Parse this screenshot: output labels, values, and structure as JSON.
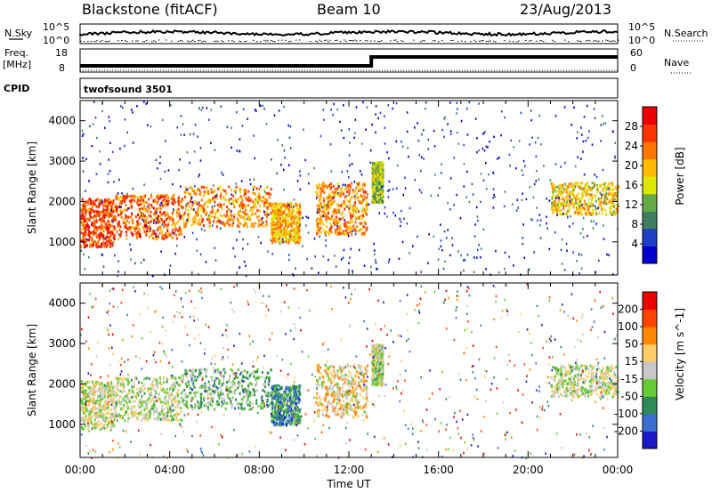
{
  "header": {
    "station": "Blackstone (fitACF)",
    "beam": "Beam 10",
    "date": "23/Aug/2013"
  },
  "summary": {
    "nsky_label": "N.Sky",
    "nsearch_label": "N.Search",
    "freq_label": "Freq.",
    "freq_unit": "[MHz]",
    "nave_label": "Nave",
    "cpid_label": "CPID",
    "cpid_value": "twofsound 3501",
    "noise_ticks_left": [
      "10^5",
      "10^0"
    ],
    "noise_ticks_right": [
      "10^5",
      "10^0"
    ],
    "freq_ticks": [
      "18",
      "8"
    ],
    "nave_ticks": [
      "60",
      "0"
    ],
    "freq_step_time": 13.0,
    "freq_before": 8,
    "freq_after": 18
  },
  "colors": {
    "power_scale": [
      "#0000cc",
      "#1f3fc8",
      "#3f7f5f",
      "#66aa44",
      "#dde800",
      "#ffbb00",
      "#ff7700",
      "#ff3300",
      "#ee0000"
    ],
    "velocity_scale": [
      "#1a1ac8",
      "#3a6fd0",
      "#2e8b57",
      "#66cc33",
      "#c8c8c8",
      "#ffcc66",
      "#ff8800",
      "#ff4400",
      "#ee0000"
    ]
  },
  "chart_data": [
    {
      "type": "heatmap",
      "title": "",
      "parameter": "Power",
      "xlabel": "",
      "ylabel": "Slant Range [km]",
      "xlim": [
        0,
        24
      ],
      "ylim": [
        180,
        4500
      ],
      "yticks": [
        1000,
        2000,
        3000,
        4000
      ],
      "colorbar": {
        "label": "Power [dB]",
        "ticks": [
          "28",
          "24",
          "20",
          "16",
          "12",
          "8",
          "4"
        ],
        "range": [
          0,
          32
        ]
      },
      "echo_bands": [
        {
          "t0": 0.0,
          "t1": 1.5,
          "r0": 900,
          "r1": 2100,
          "value": 26
        },
        {
          "t0": 1.5,
          "t1": 4.5,
          "r0": 1100,
          "r1": 2200,
          "value": 24
        },
        {
          "t0": 4.5,
          "t1": 8.5,
          "r0": 1400,
          "r1": 2400,
          "value": 22
        },
        {
          "t0": 8.5,
          "t1": 9.8,
          "r0": 1000,
          "r1": 2000,
          "value": 20
        },
        {
          "t0": 10.5,
          "t1": 12.8,
          "r0": 1200,
          "r1": 2500,
          "value": 22
        },
        {
          "t0": 13.0,
          "t1": 13.5,
          "r0": 2000,
          "r1": 3000,
          "value": 14
        },
        {
          "t0": 21.0,
          "t1": 24.0,
          "r0": 1700,
          "r1": 2500,
          "value": 18
        }
      ]
    },
    {
      "type": "heatmap",
      "title": "",
      "parameter": "Velocity",
      "xlabel": "Time UT",
      "ylabel": "Slant Range [km]",
      "xlim": [
        0,
        24
      ],
      "ylim": [
        180,
        4500
      ],
      "xticks": [
        "00:00",
        "04:00",
        "08:00",
        "12:00",
        "16:00",
        "20:00",
        "00:00"
      ],
      "yticks": [
        1000,
        2000,
        3000,
        4000
      ],
      "colorbar": {
        "label": "Velocity [m s^-1]",
        "ticks": [
          "200",
          "100",
          "50",
          "15",
          "-15",
          "-50",
          "-100",
          "-200"
        ],
        "range": [
          -250,
          250
        ]
      },
      "echo_bands": [
        {
          "t0": 0.0,
          "t1": 1.5,
          "r0": 900,
          "r1": 2100,
          "value": 0
        },
        {
          "t0": 1.5,
          "t1": 4.5,
          "r0": 1100,
          "r1": 2200,
          "value": -10
        },
        {
          "t0": 4.5,
          "t1": 8.5,
          "r0": 1400,
          "r1": 2400,
          "value": -60
        },
        {
          "t0": 8.5,
          "t1": 9.8,
          "r0": 1000,
          "r1": 2000,
          "value": -120
        },
        {
          "t0": 10.5,
          "t1": 12.8,
          "r0": 1200,
          "r1": 2500,
          "value": 40
        },
        {
          "t0": 13.0,
          "t1": 13.5,
          "r0": 2000,
          "r1": 3000,
          "value": -20
        },
        {
          "t0": 21.0,
          "t1": 24.0,
          "r0": 1700,
          "r1": 2500,
          "value": -5
        }
      ]
    }
  ]
}
